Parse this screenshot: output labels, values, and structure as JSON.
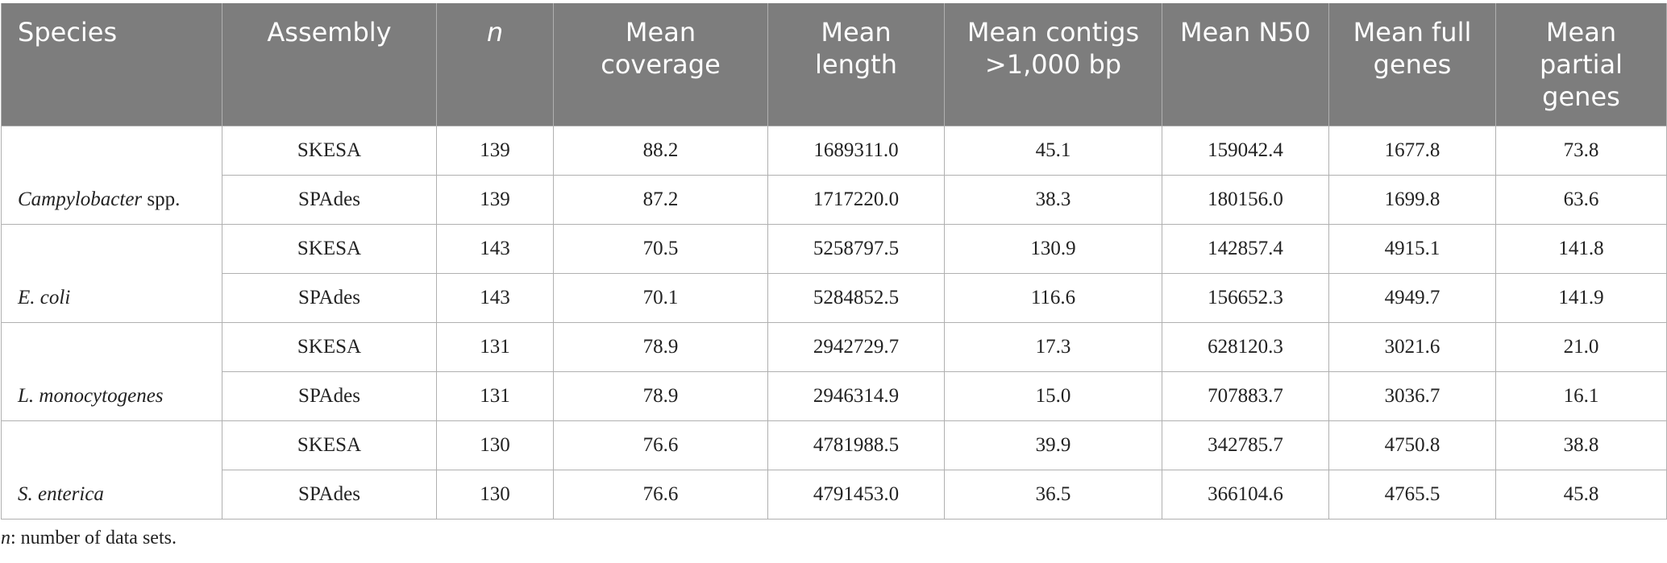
{
  "table": {
    "header": [
      "Species",
      "Assembly",
      "n",
      "Mean coverage",
      "Mean length",
      "Mean contigs >1,000 bp",
      "Mean N50",
      "Mean full genes",
      "Mean partial genes"
    ],
    "groups": [
      {
        "species": "Campylobacter",
        "species_suffix": "spp.",
        "rows": [
          [
            "SKESA",
            "139",
            "88.2",
            "1689311.0",
            "45.1",
            "159042.4",
            "1677.8",
            "73.8"
          ],
          [
            "SPAdes",
            "139",
            "87.2",
            "1717220.0",
            "38.3",
            "180156.0",
            "1699.8",
            "63.6"
          ]
        ]
      },
      {
        "species": "E. coli",
        "rows": [
          [
            "SKESA",
            "143",
            "70.5",
            "5258797.5",
            "130.9",
            "142857.4",
            "4915.1",
            "141.8"
          ],
          [
            "SPAdes",
            "143",
            "70.1",
            "5284852.5",
            "116.6",
            "156652.3",
            "4949.7",
            "141.9"
          ]
        ]
      },
      {
        "species": "L. monocytogenes",
        "rows": [
          [
            "SKESA",
            "131",
            "78.9",
            "2942729.7",
            "17.3",
            "628120.3",
            "3021.6",
            "21.0"
          ],
          [
            "SPAdes",
            "131",
            "78.9",
            "2946314.9",
            "15.0",
            "707883.7",
            "3036.7",
            "16.1"
          ]
        ]
      },
      {
        "species": "S. enterica",
        "rows": [
          [
            "SKESA",
            "130",
            "76.6",
            "4781988.5",
            "39.9",
            "342785.7",
            "4750.8",
            "38.8"
          ],
          [
            "SPAdes",
            "130",
            "76.6",
            "4791453.0",
            "36.5",
            "366104.6",
            "4765.5",
            "45.8"
          ]
        ]
      }
    ]
  },
  "footnote": {
    "symbol": "n",
    "text": ": number of data sets."
  }
}
